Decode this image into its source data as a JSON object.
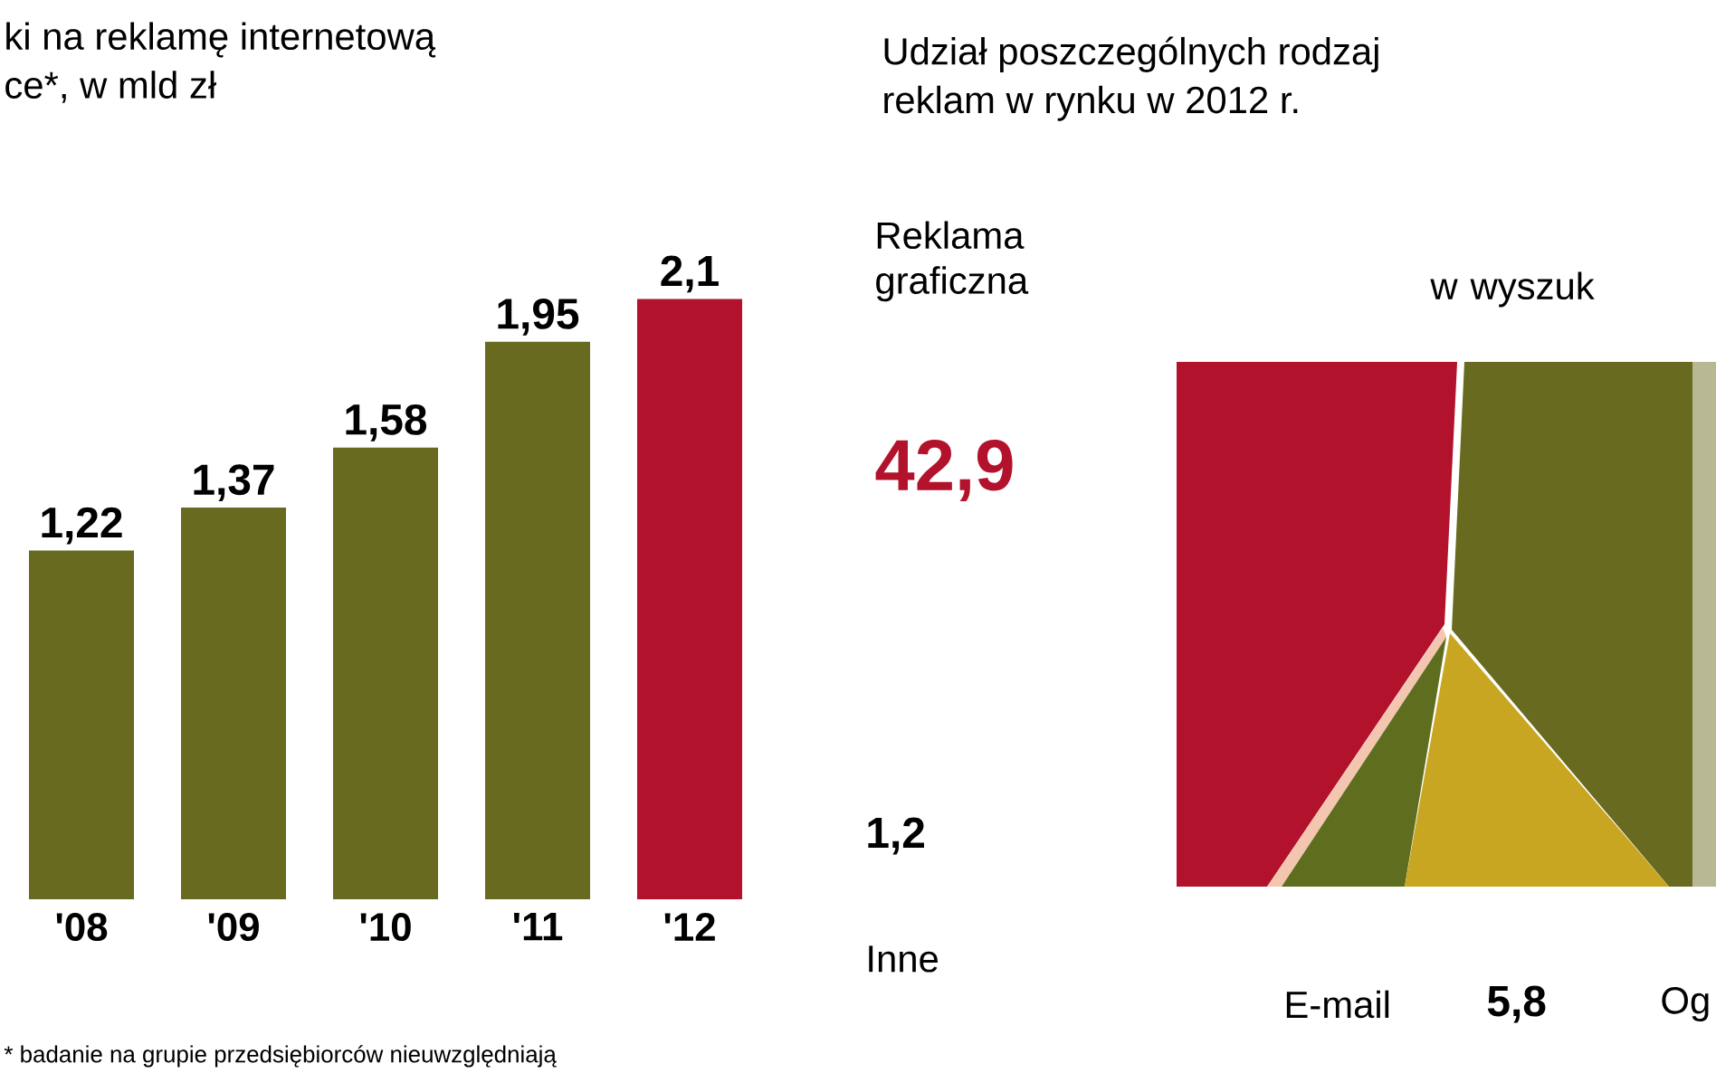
{
  "chart_data": [
    {
      "type": "bar",
      "title": "ki na reklamę internetową",
      "subtitle": "ce*, w mld zł",
      "categories": [
        "'08",
        "'09",
        "'10",
        "'11",
        "'12"
      ],
      "values": [
        1.22,
        1.37,
        1.58,
        1.95,
        2.1
      ],
      "value_labels": [
        "1,22",
        "1,37",
        "1,58",
        "1,95",
        "2,1"
      ],
      "colors": [
        "#676a1f",
        "#676a1f",
        "#676a1f",
        "#676a1f",
        "#b3122c"
      ],
      "annotations": [
        "* badanie na grupie przedsiębiorców nieuwzględniają"
      ]
    },
    {
      "type": "other",
      "title": "Udział poszczególnych rodzaj",
      "subtitle": "reklam w rynku w 2012 r.",
      "categories": [
        "Reklama graficzna",
        "w wyszuk",
        "Inne",
        "E-mail",
        null,
        "Og"
      ],
      "values": [
        42.9,
        null,
        1.2,
        null,
        5.8,
        null
      ],
      "value_labels": [
        "42,9",
        null,
        "1,2",
        null,
        "5,8",
        null
      ],
      "colors": [
        "#b3122c",
        "#676a1f",
        "#f4c6b0",
        "#5e6e1e",
        "#c9a621",
        "#b8b894"
      ]
    }
  ]
}
